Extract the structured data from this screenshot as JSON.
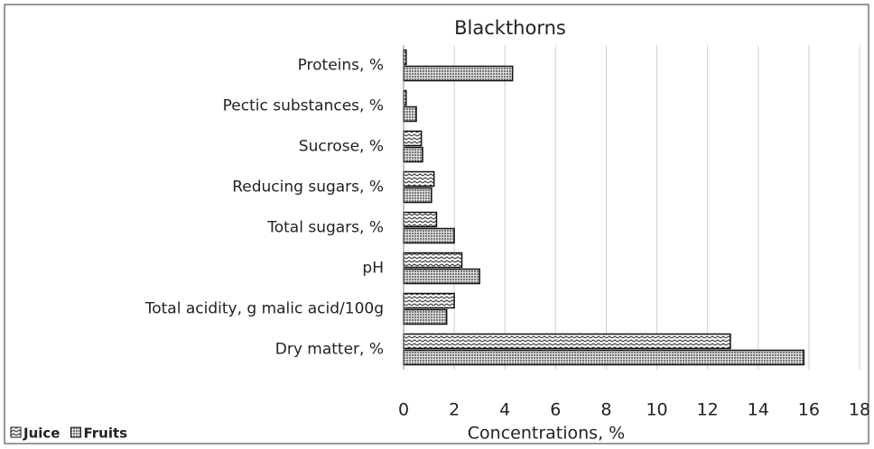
{
  "chart_data": {
    "type": "barh",
    "title": "Blackthorns",
    "categories": [
      "Proteins, %",
      "Pectic substances, %",
      "Sucrose, %",
      "Reducing sugars, %",
      "Total sugars, %",
      "pH",
      "Total acidity, g malic acid/100g",
      "Dry matter, %"
    ],
    "series": [
      {
        "name": "Juice",
        "color": "#444444",
        "values": [
          0.1,
          0.1,
          0.7,
          1.2,
          1.3,
          2.3,
          2.0,
          12.9
        ]
      },
      {
        "name": "Fruits",
        "color": "#777777",
        "values": [
          4.3,
          0.5,
          0.75,
          1.1,
          2.0,
          3.0,
          1.7,
          15.8
        ]
      }
    ],
    "xlabel": "Concentrations, %",
    "xlim": [
      0,
      18
    ],
    "xticks": [
      0,
      2,
      4,
      6,
      8,
      10,
      12,
      14,
      16,
      18
    ],
    "grid": true,
    "legend": "bottom-left"
  }
}
